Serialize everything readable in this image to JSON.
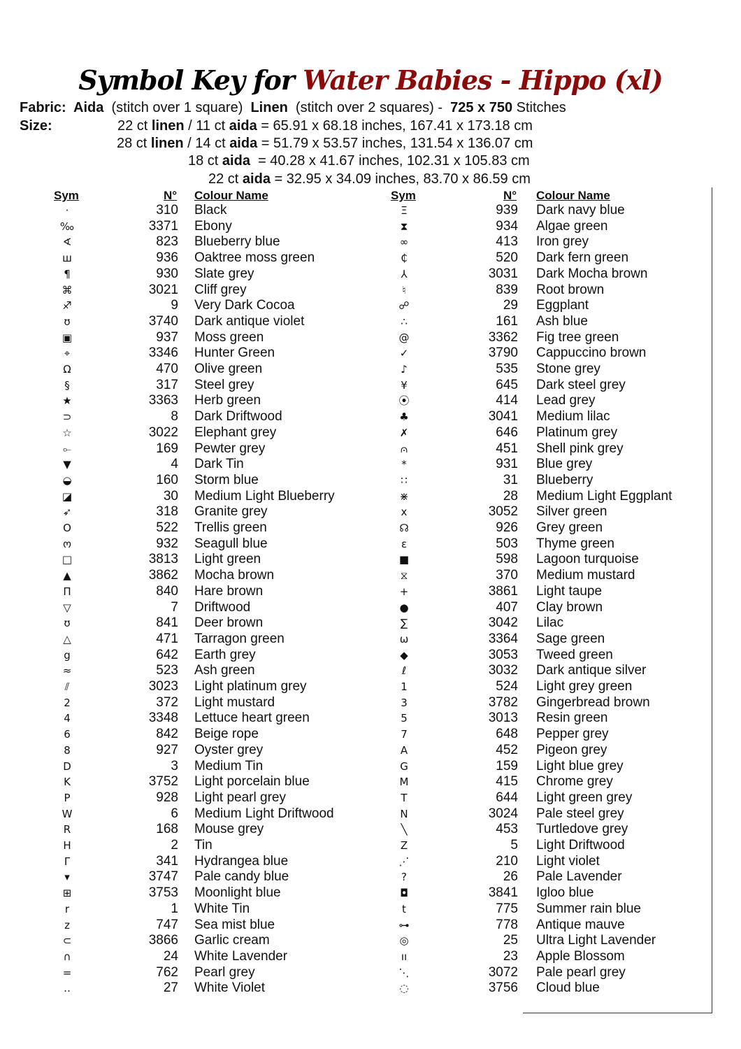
{
  "title": {
    "prefix": "Symbol Key for",
    "pattern": "Water Babies - Hippo (xl)"
  },
  "fabric": [
    {
      "t": "Fabric:  Aida",
      "b": true
    },
    {
      "t": "  (stitch over 1 square)  ",
      "b": false
    },
    {
      "t": "Linen",
      "b": true
    },
    {
      "t": "  (stitch over 2 squares) -  ",
      "b": false
    },
    {
      "t": "725 x 750",
      "b": true
    },
    {
      "t": " Stitches",
      "b": false
    }
  ],
  "size_label": "Size:",
  "sizes": [
    [
      {
        "t": "22 ct ",
        "b": false
      },
      {
        "t": "linen",
        "b": true
      },
      {
        "t": " / 11 ct ",
        "b": false
      },
      {
        "t": "aida",
        "b": true
      },
      {
        "t": " = 65.91 x 68.18 inches, 167.41 x 173.18 cm",
        "b": false
      }
    ],
    [
      {
        "t": "28 ct ",
        "b": false
      },
      {
        "t": "linen",
        "b": true
      },
      {
        "t": " / 14 ct ",
        "b": false
      },
      {
        "t": "aida",
        "b": true
      },
      {
        "t": " = 51.79 x 53.57 inches, 131.54 x 136.07 cm",
        "b": false
      }
    ],
    [
      {
        "t": "18 ct ",
        "b": false
      },
      {
        "t": "aida",
        "b": true
      },
      {
        "t": "  = 40.28 x 41.67 inches, 102.31 x 105.83 cm",
        "b": false
      }
    ],
    [
      {
        "t": "22 ct ",
        "b": false
      },
      {
        "t": "aida",
        "b": true
      },
      {
        "t": " = 32.95 x 34.09 inches, 83.70 x 86.59 cm",
        "b": false
      }
    ]
  ],
  "headers": {
    "sym": "Sym",
    "num": "N°",
    "name": "Colour Name"
  },
  "left": [
    [
      "·",
      "310",
      "Black"
    ],
    [
      "‰",
      "3371",
      "Ebony"
    ],
    [
      "∢",
      "823",
      "Blueberry blue"
    ],
    [
      "ш",
      "936",
      "Oaktree moss green"
    ],
    [
      "¶",
      "930",
      "Slate grey"
    ],
    [
      "⌘",
      "3021",
      "Cliff grey"
    ],
    [
      "♐",
      "9",
      "Very Dark Cocoa"
    ],
    [
      "ʊ",
      "3740",
      "Dark antique violet"
    ],
    [
      "▣",
      "937",
      "Moss green"
    ],
    [
      "⌖",
      "3346",
      "Hunter Green"
    ],
    [
      "Ω",
      "470",
      "Olive green"
    ],
    [
      "§",
      "317",
      "Steel grey"
    ],
    [
      "★",
      "3363",
      "Herb green"
    ],
    [
      "⊃",
      "8",
      "Dark Driftwood"
    ],
    [
      "☆",
      "3022",
      "Elephant grey"
    ],
    [
      "⟜",
      "169",
      "Pewter grey"
    ],
    [
      "▼",
      "4",
      "Dark Tin"
    ],
    [
      "◒",
      "160",
      "Storm blue"
    ],
    [
      "◪",
      "30",
      "Medium Light Blueberry"
    ],
    [
      "➶",
      "318",
      "Granite grey"
    ],
    [
      "O",
      "522",
      "Trellis green"
    ],
    [
      "ო",
      "932",
      "Seagull blue"
    ],
    [
      "□",
      "3813",
      "Light green"
    ],
    [
      "▲",
      "3862",
      "Mocha brown"
    ],
    [
      "Π",
      "840",
      "Hare brown"
    ],
    [
      "▽",
      "7",
      "Driftwood"
    ],
    [
      "ʊ",
      "841",
      "Deer brown"
    ],
    [
      "△",
      "471",
      "Tarragon green"
    ],
    [
      "g",
      "642",
      "Earth grey"
    ],
    [
      "≈",
      "523",
      "Ash green"
    ],
    [
      "⫽",
      "3023",
      "Light platinum grey"
    ],
    [
      "2",
      "372",
      "Light mustard"
    ],
    [
      "4",
      "3348",
      "Lettuce heart green"
    ],
    [
      "6",
      "842",
      "Beige rope"
    ],
    [
      "8",
      "927",
      "Oyster grey"
    ],
    [
      "D",
      "3",
      "Medium Tin"
    ],
    [
      "K",
      "3752",
      "Light porcelain blue"
    ],
    [
      "P",
      "928",
      "Light pearl grey"
    ],
    [
      "W",
      "6",
      "Medium Light Driftwood"
    ],
    [
      "R",
      "168",
      "Mouse grey"
    ],
    [
      "H",
      "2",
      "Tin"
    ],
    [
      "Γ",
      "341",
      "Hydrangea blue"
    ],
    [
      "▾",
      "3747",
      "Pale candy blue"
    ],
    [
      "⊞",
      "3753",
      "Moonlight blue"
    ],
    [
      "r",
      "1",
      "White Tin"
    ],
    [
      "z",
      "747",
      "Sea mist blue"
    ],
    [
      "⊂",
      "3866",
      "Garlic cream"
    ],
    [
      "∩",
      "24",
      "White Lavender"
    ],
    [
      "=",
      "762",
      "Pearl grey"
    ],
    [
      "‥",
      "27",
      "White Violet"
    ]
  ],
  "right": [
    [
      "Ξ",
      "939",
      "Dark navy blue"
    ],
    [
      "⧗",
      "934",
      "Algae green"
    ],
    [
      "∞",
      "413",
      "Iron grey"
    ],
    [
      "₵",
      "520",
      "Dark fern green"
    ],
    [
      "⅄",
      "3031",
      "Dark Mocha brown"
    ],
    [
      "♮",
      "839",
      "Root brown"
    ],
    [
      "☍",
      "29",
      "Eggplant"
    ],
    [
      "∴",
      "161",
      "Ash blue"
    ],
    [
      "@",
      "3362",
      "Fig tree green"
    ],
    [
      "✓",
      "3790",
      "Cappuccino brown"
    ],
    [
      "♪",
      "535",
      "Stone grey"
    ],
    [
      "¥",
      "645",
      "Dark steel grey"
    ],
    [
      "⦿",
      "414",
      "Lead grey"
    ],
    [
      "♣",
      "3041",
      "Medium lilac"
    ],
    [
      "✗",
      "646",
      "Platinum grey"
    ],
    [
      "⩀",
      "451",
      "Shell pink grey"
    ],
    [
      "*",
      "931",
      "Blue grey"
    ],
    [
      "∷",
      "31",
      "Blueberry"
    ],
    [
      "⋇",
      "28",
      "Medium Light Eggplant"
    ],
    [
      "x",
      "3052",
      "Silver green"
    ],
    [
      "☊",
      "926",
      "Grey green"
    ],
    [
      "ɛ",
      "503",
      "Thyme green"
    ],
    [
      "■",
      "598",
      "Lagoon turquoise"
    ],
    [
      "⧖",
      "370",
      "Medium mustard"
    ],
    [
      "+",
      "3861",
      "Light taupe"
    ],
    [
      "●",
      "407",
      "Clay brown"
    ],
    [
      "∑",
      "3042",
      "Lilac"
    ],
    [
      "ω",
      "3364",
      "Sage green"
    ],
    [
      "◆",
      "3053",
      "Tweed green"
    ],
    [
      "ℓ",
      "3032",
      "Dark antique silver"
    ],
    [
      "1",
      "524",
      "Light grey green"
    ],
    [
      "3",
      "3782",
      "Gingerbread brown"
    ],
    [
      "5",
      "3013",
      "Resin green"
    ],
    [
      "7",
      "648",
      "Pepper grey"
    ],
    [
      "A",
      "452",
      "Pigeon grey"
    ],
    [
      "G",
      "159",
      "Light blue grey"
    ],
    [
      "M",
      "415",
      "Chrome grey"
    ],
    [
      "T",
      "644",
      "Light green grey"
    ],
    [
      "N",
      "3024",
      "Pale steel grey"
    ],
    [
      "╲",
      "453",
      "Turtledove grey"
    ],
    [
      "Z",
      "5",
      "Light Driftwood"
    ],
    [
      "⋰",
      "210",
      "Light violet"
    ],
    [
      "?",
      "26",
      "Pale Lavender"
    ],
    [
      "◘",
      "3841",
      "Igloo blue"
    ],
    [
      "t",
      "775",
      "Summer rain blue"
    ],
    [
      "⊶",
      "778",
      "Antique mauve"
    ],
    [
      "◎",
      "25",
      "Ultra Light Lavender"
    ],
    [
      "ıı",
      "23",
      "Apple Blossom"
    ],
    [
      "⋱",
      "3072",
      "Pale pearl grey"
    ],
    [
      "◌",
      "3756",
      "Cloud blue"
    ]
  ]
}
